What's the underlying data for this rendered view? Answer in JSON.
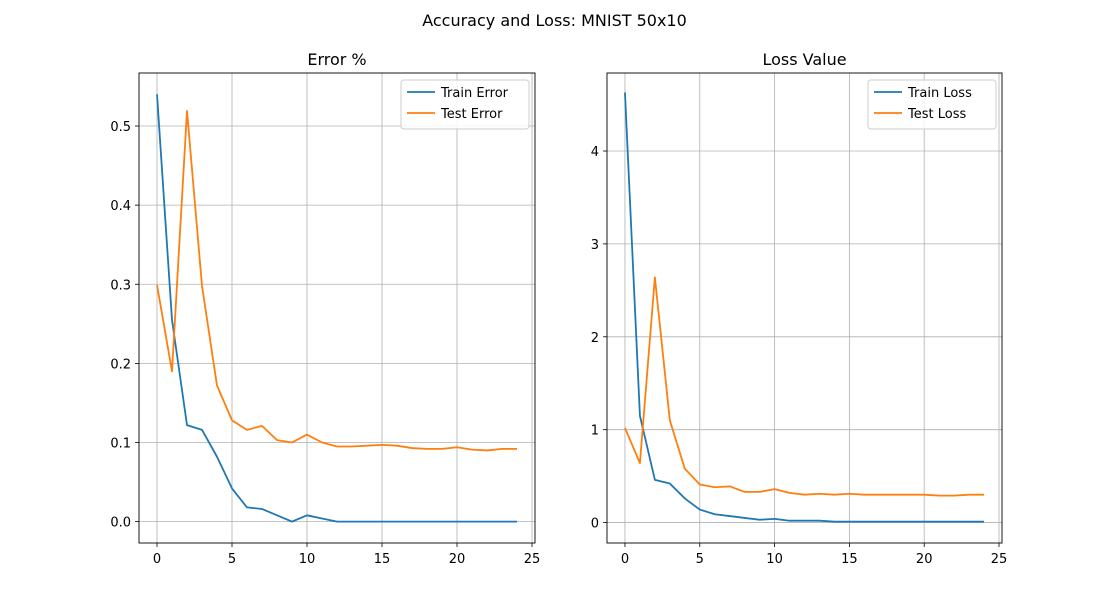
{
  "figure": {
    "suptitle": "Accuracy and Loss: MNIST 50x10",
    "colors": {
      "train": "#1f77b4",
      "test": "#ff7f0e",
      "grid": "#b0b0b0"
    }
  },
  "chart_data": [
    {
      "type": "line",
      "title": "Error %",
      "xlabel": "",
      "ylabel": "",
      "xlim": [
        -1.2,
        25.2
      ],
      "ylim": [
        -0.027,
        0.567
      ],
      "xticks": [
        0,
        5,
        10,
        15,
        20,
        25
      ],
      "yticks": [
        0.0,
        0.1,
        0.2,
        0.3,
        0.4,
        0.5
      ],
      "ytick_labels": [
        "0.0",
        "0.1",
        "0.2",
        "0.3",
        "0.4",
        "0.5"
      ],
      "grid": true,
      "legend": "top-right",
      "x": [
        0,
        1,
        2,
        3,
        4,
        5,
        6,
        7,
        8,
        9,
        10,
        11,
        12,
        13,
        14,
        15,
        16,
        17,
        18,
        19,
        20,
        21,
        22,
        23,
        24
      ],
      "series": [
        {
          "name": "Train Error",
          "color": "#1f77b4",
          "values": [
            0.54,
            0.255,
            0.122,
            0.116,
            0.082,
            0.042,
            0.018,
            0.016,
            0.008,
            0.0,
            0.008,
            0.004,
            0.0,
            0.0,
            0.0,
            0.0,
            0.0,
            0.0,
            0.0,
            0.0,
            0.0,
            0.0,
            0.0,
            0.0,
            0.0
          ]
        },
        {
          "name": "Test Error",
          "color": "#ff7f0e",
          "values": [
            0.299,
            0.19,
            0.519,
            0.298,
            0.172,
            0.128,
            0.116,
            0.121,
            0.103,
            0.1,
            0.11,
            0.1,
            0.095,
            0.095,
            0.096,
            0.097,
            0.096,
            0.093,
            0.092,
            0.092,
            0.094,
            0.091,
            0.09,
            0.092,
            0.092
          ]
        }
      ]
    },
    {
      "type": "line",
      "title": "Loss Value",
      "xlabel": "",
      "ylabel": "",
      "xlim": [
        -1.2,
        25.2
      ],
      "ylim": [
        -0.22,
        4.84
      ],
      "xticks": [
        0,
        5,
        10,
        15,
        20,
        25
      ],
      "yticks": [
        0,
        1,
        2,
        3,
        4
      ],
      "ytick_labels": [
        "0",
        "1",
        "2",
        "3",
        "4"
      ],
      "grid": true,
      "legend": "top-right",
      "x": [
        0,
        1,
        2,
        3,
        4,
        5,
        6,
        7,
        8,
        9,
        10,
        11,
        12,
        13,
        14,
        15,
        16,
        17,
        18,
        19,
        20,
        21,
        22,
        23,
        24
      ],
      "series": [
        {
          "name": "Train Loss",
          "color": "#1f77b4",
          "values": [
            4.63,
            1.15,
            0.46,
            0.42,
            0.26,
            0.14,
            0.09,
            0.07,
            0.05,
            0.03,
            0.04,
            0.02,
            0.02,
            0.02,
            0.01,
            0.01,
            0.01,
            0.01,
            0.01,
            0.01,
            0.01,
            0.01,
            0.01,
            0.01,
            0.01
          ]
        },
        {
          "name": "Test Loss",
          "color": "#ff7f0e",
          "values": [
            1.02,
            0.64,
            2.64,
            1.1,
            0.58,
            0.41,
            0.38,
            0.39,
            0.33,
            0.33,
            0.36,
            0.32,
            0.3,
            0.31,
            0.3,
            0.31,
            0.3,
            0.3,
            0.3,
            0.3,
            0.3,
            0.29,
            0.29,
            0.3,
            0.3
          ]
        }
      ]
    }
  ]
}
